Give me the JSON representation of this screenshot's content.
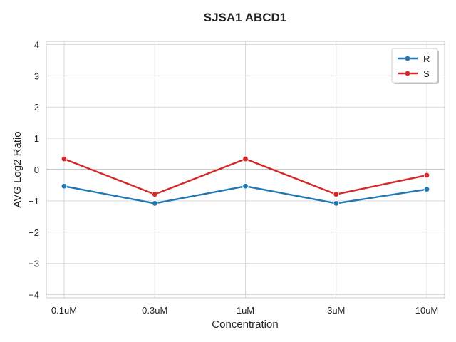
{
  "chart_data": {
    "type": "line",
    "title": "SJSA1 ABCD1",
    "xlabel": "Concentration",
    "ylabel": "AVG Log2 Ratio",
    "categories": [
      "0.1uM",
      "0.3uM",
      "1uM",
      "3uM",
      "10uM"
    ],
    "ylim": [
      -4.1,
      4.1
    ],
    "yticks": [
      -4,
      -3,
      -2,
      -1,
      0,
      1,
      2,
      3,
      4
    ],
    "ytick_labels": [
      "−4",
      "−3",
      "−2",
      "−1",
      "0",
      "1",
      "2",
      "3",
      "4"
    ],
    "grid": true,
    "zero_line": true,
    "legend_position": "top-right",
    "series": [
      {
        "name": "R",
        "color": "#1f77b4",
        "values": [
          -0.53,
          -1.08,
          -0.53,
          -1.08,
          -0.63
        ]
      },
      {
        "name": "S",
        "color": "#d62728",
        "values": [
          0.34,
          -0.79,
          0.34,
          -0.79,
          -0.18
        ]
      }
    ]
  }
}
